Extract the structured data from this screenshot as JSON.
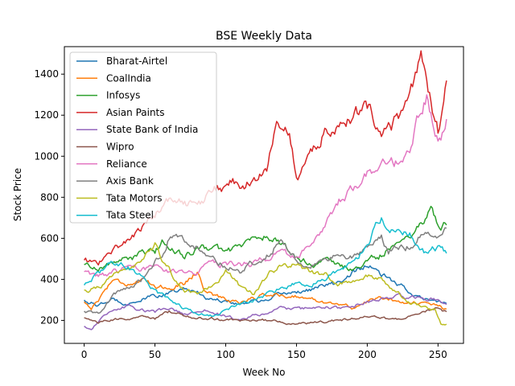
{
  "chart_data": {
    "type": "line",
    "title": "BSE Weekly Data",
    "xlabel": "Week No",
    "ylabel": "Stock Price",
    "xlim": [
      -14,
      268
    ],
    "ylim": [
      88,
      1534
    ],
    "x_ticks": [
      0,
      50,
      100,
      150,
      200,
      250
    ],
    "y_ticks": [
      200,
      400,
      600,
      800,
      1000,
      1200,
      1400
    ],
    "grid": false,
    "legend_position": "upper-left",
    "series": [
      {
        "name": "Bharat-Airtel",
        "color": "#1f77b4",
        "anchors": [
          [
            0,
            300
          ],
          [
            10,
            270
          ],
          [
            20,
            300
          ],
          [
            30,
            285
          ],
          [
            40,
            300
          ],
          [
            50,
            320
          ],
          [
            60,
            330
          ],
          [
            70,
            350
          ],
          [
            80,
            340
          ],
          [
            90,
            300
          ],
          [
            100,
            300
          ],
          [
            110,
            280
          ],
          [
            120,
            300
          ],
          [
            130,
            290
          ],
          [
            140,
            330
          ],
          [
            150,
            340
          ],
          [
            160,
            350
          ],
          [
            170,
            370
          ],
          [
            180,
            380
          ],
          [
            190,
            440
          ],
          [
            200,
            470
          ],
          [
            210,
            420
          ],
          [
            220,
            380
          ],
          [
            230,
            340
          ],
          [
            240,
            300
          ],
          [
            250,
            290
          ],
          [
            256,
            285
          ]
        ]
      },
      {
        "name": "CoalIndia",
        "color": "#ff7f0e",
        "anchors": [
          [
            0,
            290
          ],
          [
            5,
            260
          ],
          [
            10,
            300
          ],
          [
            20,
            400
          ],
          [
            30,
            380
          ],
          [
            40,
            390
          ],
          [
            50,
            370
          ],
          [
            60,
            360
          ],
          [
            70,
            380
          ],
          [
            80,
            440
          ],
          [
            85,
            350
          ],
          [
            90,
            330
          ],
          [
            100,
            300
          ],
          [
            110,
            290
          ],
          [
            120,
            310
          ],
          [
            130,
            330
          ],
          [
            140,
            320
          ],
          [
            150,
            320
          ],
          [
            160,
            300
          ],
          [
            170,
            290
          ],
          [
            180,
            280
          ],
          [
            190,
            260
          ],
          [
            200,
            290
          ],
          [
            210,
            310
          ],
          [
            220,
            300
          ],
          [
            230,
            290
          ],
          [
            240,
            280
          ],
          [
            250,
            270
          ],
          [
            256,
            250
          ]
        ]
      },
      {
        "name": "Infosys",
        "color": "#2ca02c",
        "anchors": [
          [
            0,
            470
          ],
          [
            10,
            460
          ],
          [
            20,
            480
          ],
          [
            30,
            500
          ],
          [
            40,
            520
          ],
          [
            50,
            530
          ],
          [
            55,
            580
          ],
          [
            60,
            560
          ],
          [
            70,
            520
          ],
          [
            80,
            540
          ],
          [
            90,
            560
          ],
          [
            100,
            530
          ],
          [
            110,
            560
          ],
          [
            120,
            600
          ],
          [
            130,
            610
          ],
          [
            140,
            570
          ],
          [
            150,
            500
          ],
          [
            160,
            480
          ],
          [
            170,
            490
          ],
          [
            180,
            460
          ],
          [
            190,
            450
          ],
          [
            200,
            480
          ],
          [
            210,
            520
          ],
          [
            220,
            580
          ],
          [
            230,
            620
          ],
          [
            240,
            700
          ],
          [
            245,
            740
          ],
          [
            250,
            650
          ],
          [
            256,
            670
          ]
        ]
      },
      {
        "name": "Asian Paints",
        "color": "#d62728",
        "anchors": [
          [
            0,
            490
          ],
          [
            10,
            480
          ],
          [
            20,
            540
          ],
          [
            30,
            590
          ],
          [
            40,
            640
          ],
          [
            50,
            720
          ],
          [
            60,
            780
          ],
          [
            70,
            780
          ],
          [
            80,
            740
          ],
          [
            90,
            830
          ],
          [
            100,
            860
          ],
          [
            110,
            870
          ],
          [
            120,
            880
          ],
          [
            130,
            960
          ],
          [
            135,
            1100
          ],
          [
            140,
            1180
          ],
          [
            145,
            1150
          ],
          [
            150,
            880
          ],
          [
            160,
            1000
          ],
          [
            170,
            1110
          ],
          [
            180,
            1170
          ],
          [
            190,
            1220
          ],
          [
            200,
            1230
          ],
          [
            210,
            1150
          ],
          [
            220,
            1170
          ],
          [
            230,
            1250
          ],
          [
            238,
            1460
          ],
          [
            242,
            1380
          ],
          [
            250,
            1120
          ],
          [
            256,
            1340
          ]
        ]
      },
      {
        "name": "State Bank of India",
        "color": "#9467bd",
        "anchors": [
          [
            0,
            170
          ],
          [
            5,
            155
          ],
          [
            10,
            200
          ],
          [
            20,
            240
          ],
          [
            30,
            270
          ],
          [
            40,
            250
          ],
          [
            50,
            240
          ],
          [
            60,
            260
          ],
          [
            70,
            230
          ],
          [
            80,
            240
          ],
          [
            90,
            250
          ],
          [
            100,
            220
          ],
          [
            110,
            200
          ],
          [
            120,
            230
          ],
          [
            130,
            230
          ],
          [
            140,
            260
          ],
          [
            150,
            250
          ],
          [
            160,
            260
          ],
          [
            170,
            270
          ],
          [
            180,
            260
          ],
          [
            190,
            270
          ],
          [
            200,
            290
          ],
          [
            210,
            300
          ],
          [
            220,
            320
          ],
          [
            230,
            310
          ],
          [
            240,
            310
          ],
          [
            250,
            300
          ],
          [
            256,
            290
          ]
        ]
      },
      {
        "name": "Wipro",
        "color": "#8c564b",
        "anchors": [
          [
            0,
            210
          ],
          [
            10,
            190
          ],
          [
            20,
            200
          ],
          [
            30,
            210
          ],
          [
            40,
            220
          ],
          [
            50,
            210
          ],
          [
            60,
            240
          ],
          [
            70,
            220
          ],
          [
            80,
            210
          ],
          [
            90,
            210
          ],
          [
            100,
            200
          ],
          [
            110,
            200
          ],
          [
            120,
            200
          ],
          [
            130,
            200
          ],
          [
            140,
            190
          ],
          [
            150,
            180
          ],
          [
            160,
            185
          ],
          [
            170,
            190
          ],
          [
            180,
            200
          ],
          [
            190,
            210
          ],
          [
            200,
            220
          ],
          [
            210,
            210
          ],
          [
            220,
            205
          ],
          [
            230,
            215
          ],
          [
            240,
            240
          ],
          [
            250,
            270
          ],
          [
            256,
            240
          ]
        ]
      },
      {
        "name": "Reliance",
        "color": "#e377c2",
        "anchors": [
          [
            0,
            430
          ],
          [
            10,
            410
          ],
          [
            20,
            430
          ],
          [
            30,
            460
          ],
          [
            40,
            460
          ],
          [
            50,
            450
          ],
          [
            60,
            440
          ],
          [
            70,
            430
          ],
          [
            80,
            440
          ],
          [
            90,
            470
          ],
          [
            100,
            480
          ],
          [
            110,
            470
          ],
          [
            120,
            480
          ],
          [
            130,
            500
          ],
          [
            140,
            520
          ],
          [
            150,
            500
          ],
          [
            160,
            560
          ],
          [
            170,
            640
          ],
          [
            180,
            780
          ],
          [
            190,
            860
          ],
          [
            200,
            920
          ],
          [
            210,
            950
          ],
          [
            220,
            960
          ],
          [
            230,
            1000
          ],
          [
            238,
            1220
          ],
          [
            242,
            1310
          ],
          [
            246,
            1150
          ],
          [
            250,
            1060
          ],
          [
            256,
            1160
          ]
        ]
      },
      {
        "name": "Axis Bank",
        "color": "#7f7f7f",
        "anchors": [
          [
            0,
            240
          ],
          [
            10,
            230
          ],
          [
            20,
            320
          ],
          [
            30,
            360
          ],
          [
            40,
            400
          ],
          [
            50,
            480
          ],
          [
            55,
            520
          ],
          [
            60,
            610
          ],
          [
            70,
            580
          ],
          [
            80,
            560
          ],
          [
            90,
            520
          ],
          [
            100,
            470
          ],
          [
            110,
            440
          ],
          [
            120,
            480
          ],
          [
            130,
            520
          ],
          [
            140,
            600
          ],
          [
            150,
            490
          ],
          [
            160,
            480
          ],
          [
            170,
            490
          ],
          [
            180,
            510
          ],
          [
            190,
            500
          ],
          [
            200,
            540
          ],
          [
            210,
            610
          ],
          [
            215,
            540
          ],
          [
            220,
            560
          ],
          [
            230,
            560
          ],
          [
            240,
            630
          ],
          [
            250,
            580
          ],
          [
            256,
            630
          ]
        ]
      },
      {
        "name": "Tata Motors",
        "color": "#bcbd22",
        "anchors": [
          [
            0,
            340
          ],
          [
            10,
            360
          ],
          [
            20,
            420
          ],
          [
            30,
            430
          ],
          [
            40,
            470
          ],
          [
            50,
            560
          ],
          [
            60,
            450
          ],
          [
            70,
            350
          ],
          [
            80,
            320
          ],
          [
            90,
            370
          ],
          [
            100,
            440
          ],
          [
            110,
            370
          ],
          [
            120,
            330
          ],
          [
            130,
            420
          ],
          [
            140,
            480
          ],
          [
            150,
            470
          ],
          [
            160,
            430
          ],
          [
            170,
            420
          ],
          [
            180,
            370
          ],
          [
            190,
            390
          ],
          [
            200,
            420
          ],
          [
            210,
            400
          ],
          [
            220,
            350
          ],
          [
            230,
            290
          ],
          [
            240,
            270
          ],
          [
            248,
            250
          ],
          [
            252,
            185
          ],
          [
            256,
            180
          ]
        ]
      },
      {
        "name": "Tata Steel",
        "color": "#17becf",
        "anchors": [
          [
            0,
            380
          ],
          [
            10,
            430
          ],
          [
            20,
            490
          ],
          [
            30,
            470
          ],
          [
            40,
            420
          ],
          [
            50,
            340
          ],
          [
            60,
            300
          ],
          [
            70,
            260
          ],
          [
            80,
            230
          ],
          [
            90,
            220
          ],
          [
            100,
            250
          ],
          [
            110,
            280
          ],
          [
            120,
            300
          ],
          [
            130,
            330
          ],
          [
            140,
            360
          ],
          [
            150,
            380
          ],
          [
            160,
            380
          ],
          [
            170,
            400
          ],
          [
            180,
            440
          ],
          [
            190,
            480
          ],
          [
            200,
            560
          ],
          [
            210,
            710
          ],
          [
            215,
            640
          ],
          [
            220,
            640
          ],
          [
            230,
            620
          ],
          [
            240,
            540
          ],
          [
            250,
            550
          ],
          [
            256,
            520
          ]
        ]
      }
    ]
  }
}
